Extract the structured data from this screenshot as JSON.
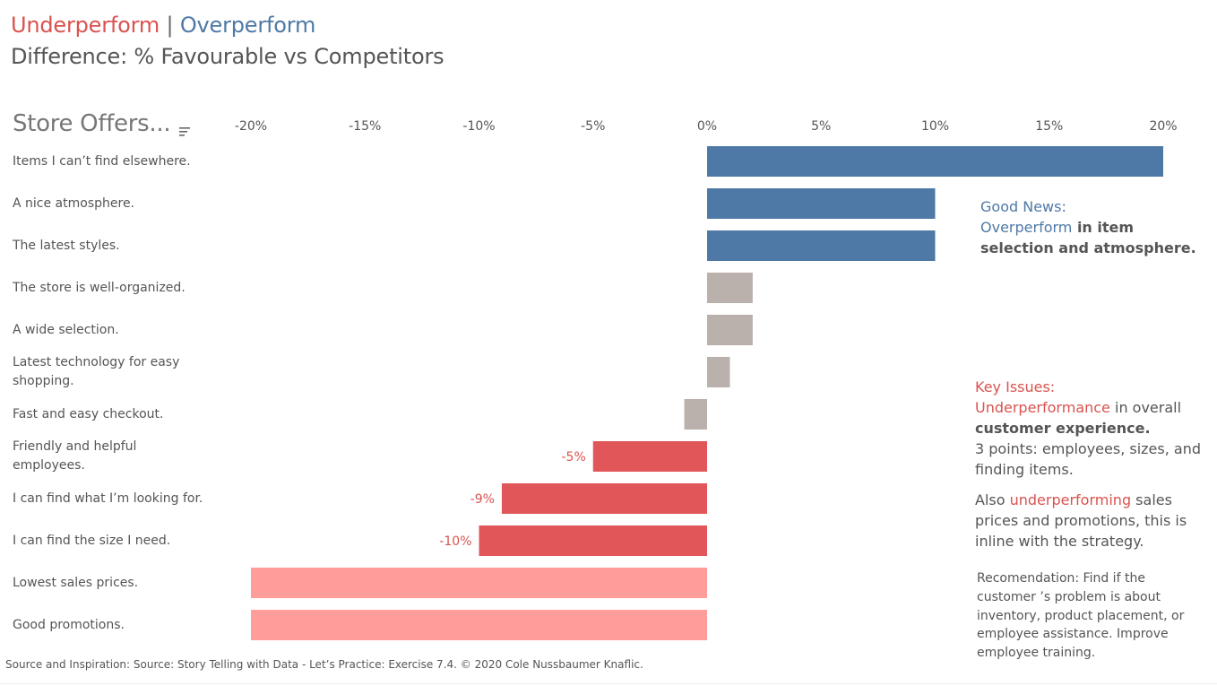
{
  "title": {
    "under": "Underperform",
    "separator": "|",
    "over": "Overperform"
  },
  "subtitle": "Difference: % Favourable vs Competitors",
  "header": "Store Offers...",
  "colors": {
    "overperform": "#4e79a7",
    "neutral": "#bab0ac",
    "underperform": "#e15759",
    "strong_underperform": "#ff9d9a",
    "label_red": "#d9534f",
    "axis_text": "#555555"
  },
  "chart_data": {
    "type": "bar",
    "orientation": "horizontal",
    "categories": [
      "Items I can’t find elsewhere.",
      "A nice atmosphere.",
      "The latest styles.",
      "The store is well-organized.",
      "A wide selection.",
      "Latest technology for easy shopping.",
      "Fast and easy checkout.",
      "Friendly and helpful employees.",
      "I can find what I’m looking for.",
      "I can find the size I need.",
      "Lowest sales prices.",
      "Good promotions."
    ],
    "values": [
      20,
      10,
      10,
      2,
      2,
      1,
      -1,
      -5,
      -9,
      -10,
      -20,
      -20
    ],
    "bar_colors": [
      "#4e79a7",
      "#4e79a7",
      "#4e79a7",
      "#bab0ac",
      "#bab0ac",
      "#bab0ac",
      "#bab0ac",
      "#e15759",
      "#e15759",
      "#e15759",
      "#ff9d9a",
      "#ff9d9a"
    ],
    "data_labels": [
      "",
      "",
      "",
      "",
      "",
      "",
      "",
      "-5%",
      "-9%",
      "-10%",
      "",
      ""
    ],
    "xlim": [
      -20,
      20
    ],
    "ticks": [
      -20,
      -15,
      -10,
      -5,
      0,
      5,
      10,
      15,
      20
    ],
    "tick_labels": [
      "-20%",
      "-15%",
      "-10%",
      "-5%",
      "0%",
      "5%",
      "10%",
      "15%",
      "20%"
    ],
    "axis_position": "top",
    "grid": false
  },
  "notes": {
    "good": {
      "heading": "Good News:",
      "highlight": "Overperform",
      "rest": " in item selection and atmosphere."
    },
    "key": {
      "heading": "Key Issues:",
      "highlight": "Underperformance",
      "rest_plain": " in overall ",
      "rest_bold": "customer experience.",
      "detail": "3 points: employees, sizes, and finding items."
    },
    "also": {
      "prefix": "Also ",
      "highlight": "underperforming",
      "rest": " sales prices and promotions, this is inline with the strategy."
    },
    "recommendation": "Recomendation: Find if the customer ’s problem is about inventory, product placement, or employee assistance. Improve employee training."
  },
  "footer": "Source and Inspiration: Source: Story Telling with Data - Let’s Practice: Exercise 7.4.  © 2020 Cole Nussbaumer Knaflic."
}
